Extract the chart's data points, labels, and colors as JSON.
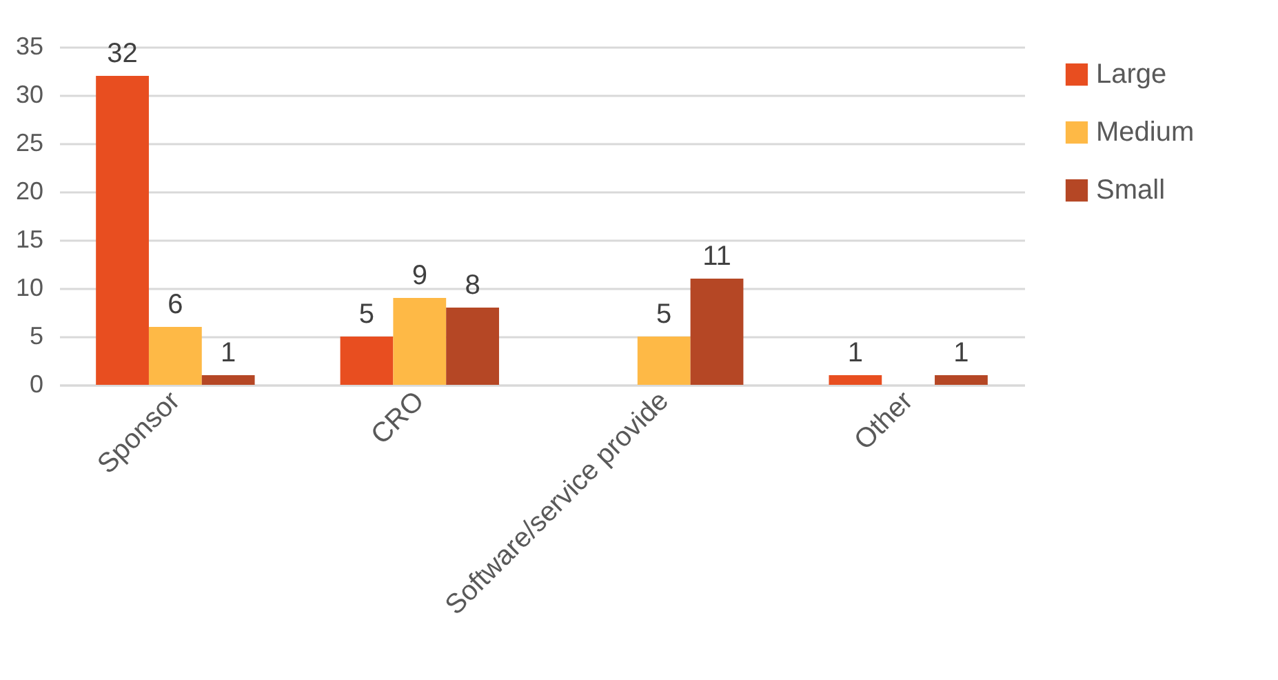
{
  "chart_data": {
    "type": "bar",
    "categories": [
      "Sponsor",
      "CRO",
      "Software/service provide",
      "Other"
    ],
    "series": [
      {
        "name": "Large",
        "color": "#e84e20",
        "values": [
          32,
          5,
          null,
          1
        ]
      },
      {
        "name": "Medium",
        "color": "#feb946",
        "values": [
          6,
          9,
          5,
          null
        ]
      },
      {
        "name": "Small",
        "color": "#b54725",
        "values": [
          1,
          8,
          11,
          1
        ]
      }
    ],
    "ylim": [
      0,
      35
    ],
    "yticks": [
      0,
      5,
      10,
      15,
      20,
      25,
      30,
      35
    ],
    "grid": "y",
    "legend": "right",
    "data_labels": true
  }
}
